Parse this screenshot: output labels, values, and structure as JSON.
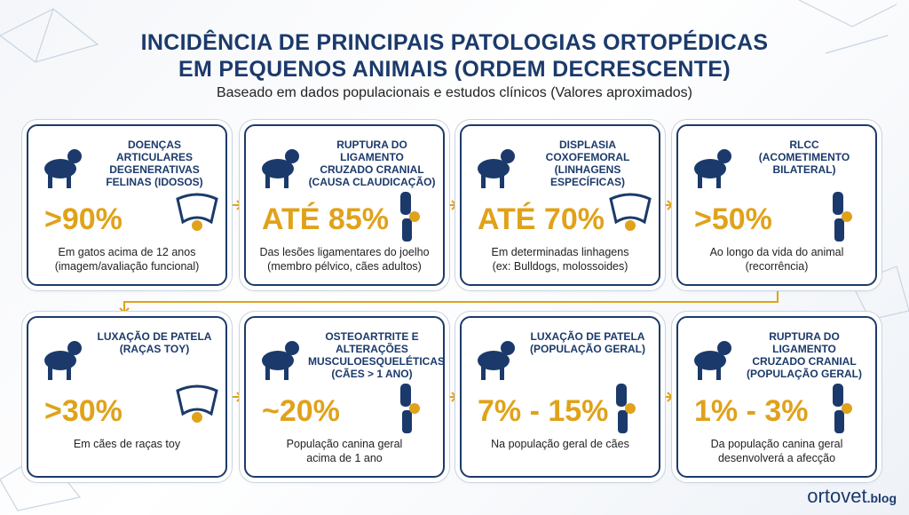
{
  "header": {
    "title": [
      "INCIDÊNCIA DE PRINCIPAIS PATOLOGIAS ORTOPÉDICAS",
      "EM PEQUENOS ANIMAIS (ORDEM DECRESCENTE)"
    ],
    "subtitle": "Baseado em dados populacionais e estudos clínicos (Valores aproximados)"
  },
  "cards": [
    {
      "title": [
        "DOENÇAS ARTICULARES",
        "DEGENERATIVAS",
        "FELINAS (IDOSOS)"
      ],
      "value": ">90%",
      "description": [
        "Em gatos acima de 12 anos",
        "(imagem/avaliação funcional)"
      ]
    },
    {
      "title": [
        "RUPTURA DO LIGAMENTO",
        "CRUZADO CRANIAL",
        "(CAUSA CLAUDICAÇÃO)"
      ],
      "value": "ATÉ 85%",
      "description": [
        "Das lesões ligamentares do joelho",
        "(membro pélvico, cães adultos)"
      ]
    },
    {
      "title": [
        "DISPLASIA",
        "COXOFEMORAL",
        "(LINHAGENS ESPECÍFICAS)"
      ],
      "value": "ATÉ 70%",
      "description": [
        "Em determinadas linhagens",
        "(ex: Bulldogs, molossoides)"
      ]
    },
    {
      "title": [
        "RLCC",
        "(ACOMETIMENTO",
        "BILATERAL)"
      ],
      "value": ">50%",
      "description": [
        "Ao longo da vida do animal",
        "(recorrência)"
      ]
    },
    {
      "title": [
        "LUXAÇÃO DE PATELA",
        "(RAÇAS TOY)"
      ],
      "value": ">30%",
      "description": [
        "Em cães de raças toy"
      ]
    },
    {
      "title": [
        "OSTEOARTRITE E",
        "ALTERAÇÕES",
        "MUSCULOESQUELÉTICAS",
        "(CÃES > 1 ANO)"
      ],
      "value": "~20%",
      "description": [
        "População canina geral",
        "acima de 1 ano"
      ]
    },
    {
      "title": [
        "LUXAÇÃO DE PATELA",
        "(POPULAÇÃO GERAL)"
      ],
      "value": "7% - 15%",
      "description": [
        "Na população geral de cães"
      ]
    },
    {
      "title": [
        "RUPTURA DO LIGAMENTO",
        "CRUZADO CRANIAL",
        "(POPULAÇÃO GERAL)"
      ],
      "value": "1% - 3%",
      "description": [
        "Da população canina geral",
        "desenvolverá a afecção"
      ]
    }
  ],
  "footer": {
    "logo": "ortovet",
    "suffix": ".blog"
  }
}
